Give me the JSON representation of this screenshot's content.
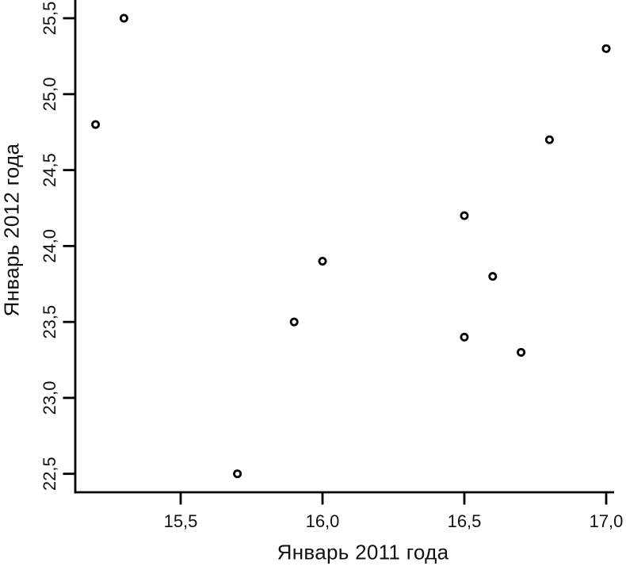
{
  "chart_data": {
    "type": "scatter",
    "title": "",
    "xlabel": "Январь 2011 года",
    "ylabel": "Январь 2012 года",
    "decimal_separator": ",",
    "grid": false,
    "legend": null,
    "marker": "open-circle",
    "xlim": [
      15.13,
      17.03
    ],
    "ylim": [
      22.38,
      25.62
    ],
    "x_ticks": [
      {
        "v": 15.5,
        "label": "15,5"
      },
      {
        "v": 16.0,
        "label": "16,0"
      },
      {
        "v": 16.5,
        "label": "16,5"
      },
      {
        "v": 17.0,
        "label": "17,0"
      }
    ],
    "y_ticks": [
      {
        "v": 22.5,
        "label": "22,5"
      },
      {
        "v": 23.0,
        "label": "23,0"
      },
      {
        "v": 23.5,
        "label": "23,5"
      },
      {
        "v": 24.0,
        "label": "24,0"
      },
      {
        "v": 24.5,
        "label": "24,5"
      },
      {
        "v": 25.0,
        "label": "25,0"
      },
      {
        "v": 25.5,
        "label": "25,5"
      }
    ],
    "points": [
      {
        "x": 15.2,
        "y": 24.8
      },
      {
        "x": 15.3,
        "y": 25.5
      },
      {
        "x": 15.7,
        "y": 22.5
      },
      {
        "x": 15.9,
        "y": 23.5
      },
      {
        "x": 16.0,
        "y": 23.9
      },
      {
        "x": 16.5,
        "y": 24.2
      },
      {
        "x": 16.5,
        "y": 23.4
      },
      {
        "x": 16.6,
        "y": 23.8
      },
      {
        "x": 16.7,
        "y": 23.3
      },
      {
        "x": 16.8,
        "y": 24.7
      },
      {
        "x": 17.0,
        "y": 25.3
      }
    ],
    "colors": {
      "axis": "#000000",
      "marker_stroke": "#000000",
      "marker_fill": "#ffffff",
      "text": "#111111",
      "background": "#ffffff"
    }
  }
}
